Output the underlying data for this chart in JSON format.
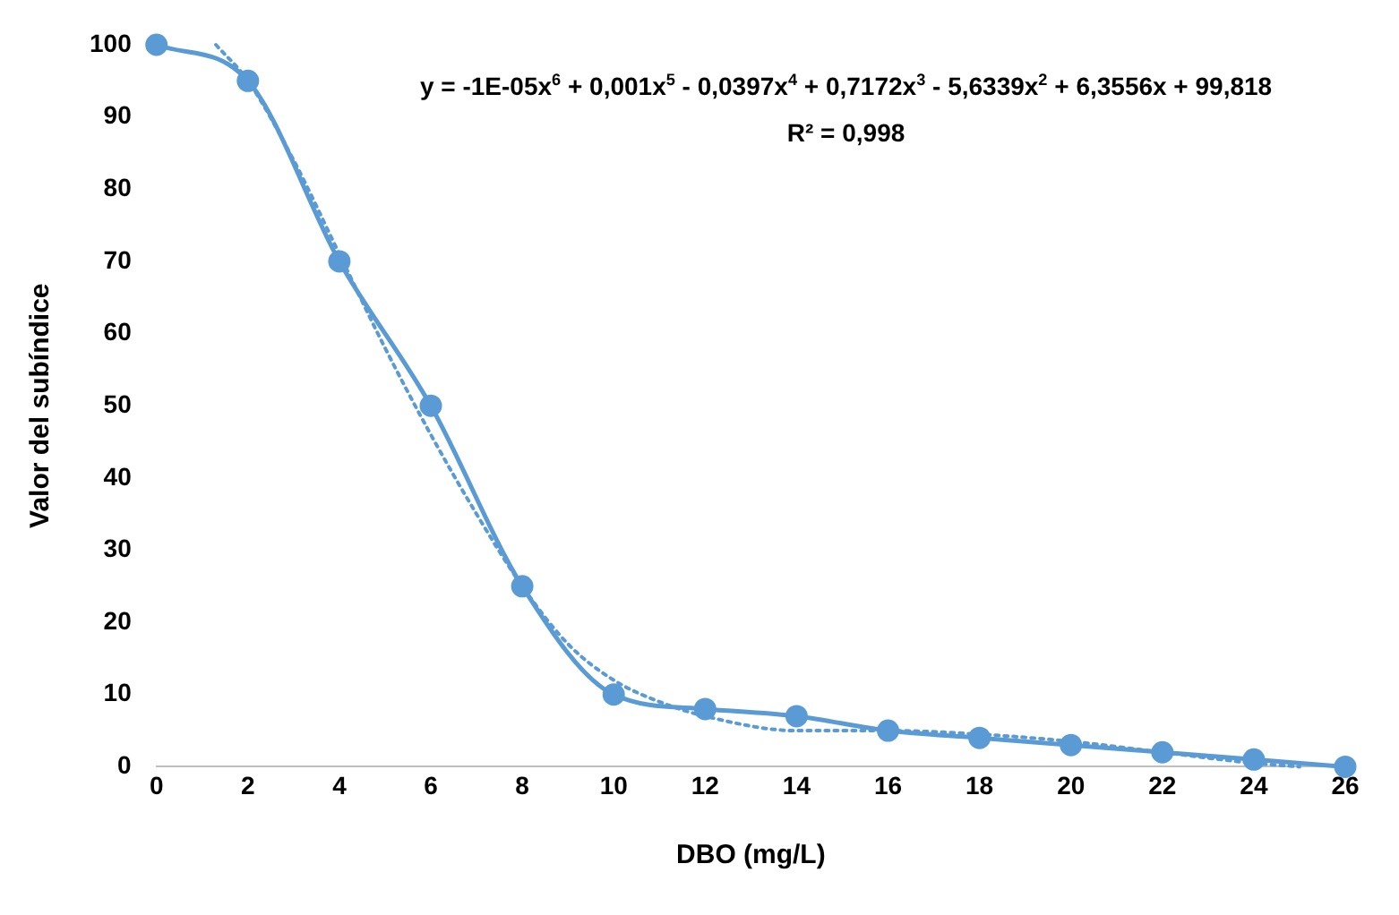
{
  "chart_data": {
    "type": "line",
    "xlabel": "DBO (mg/L)",
    "ylabel": "Valor del subíndice",
    "x": [
      0,
      2,
      4,
      6,
      8,
      10,
      12,
      14,
      16,
      18,
      20,
      22,
      24,
      26
    ],
    "xlim": [
      0,
      26
    ],
    "xticks": [
      0,
      2,
      4,
      6,
      8,
      10,
      12,
      14,
      16,
      18,
      20,
      22,
      24,
      26
    ],
    "ylim": [
      0,
      100
    ],
    "yticks": [
      0,
      10,
      20,
      30,
      40,
      50,
      60,
      70,
      80,
      90,
      100
    ],
    "grid": false,
    "legend": false,
    "series": [
      {
        "color": "#5b9bd5",
        "values": [
          100,
          95,
          70,
          50,
          25,
          10,
          8,
          7,
          5,
          4,
          3,
          2,
          1,
          0
        ],
        "marker": "circle",
        "line_style": "solid"
      },
      {
        "type": "line",
        "color": "#5b9bd5",
        "x": [
          1.3,
          2,
          3,
          4,
          5,
          6,
          7,
          8,
          9,
          10,
          11,
          12,
          14,
          16,
          18,
          20,
          22,
          24,
          25
        ],
        "values": [
          100,
          95,
          84,
          71,
          58,
          46,
          35,
          25,
          17,
          12,
          9,
          7,
          5,
          5,
          4.5,
          3.5,
          2,
          0.5,
          0
        ],
        "marker": "none",
        "line_style": "dotted"
      }
    ],
    "annotations": [
      "y = -1E-05x$^{6}$ + 0,001x$^{5}$ - 0,0397x$^{4}$ + 0,7172x$^{3}$ - 5,6339x$^{2}$ + 6,3556x + 99,818",
      "R² = 0,998"
    ]
  }
}
